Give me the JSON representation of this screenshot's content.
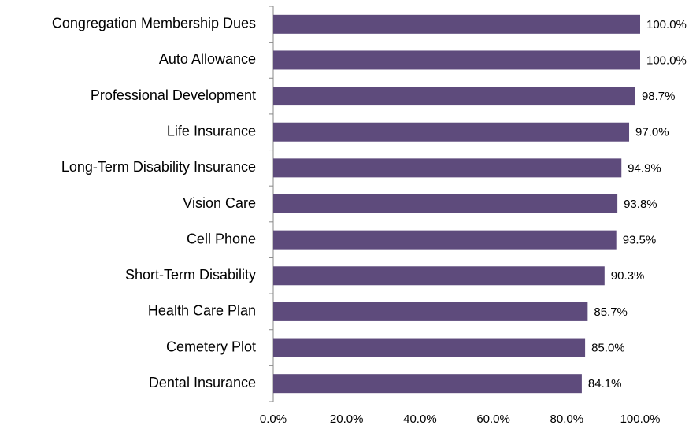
{
  "chart_data": {
    "type": "bar",
    "orientation": "horizontal",
    "categories": [
      "Congregation Membership Dues",
      "Auto Allowance",
      "Professional Development",
      "Life Insurance",
      "Long-Term Disability Insurance",
      "Vision Care",
      "Cell Phone",
      "Short-Term Disability",
      "Health Care Plan",
      "Cemetery Plot",
      "Dental Insurance"
    ],
    "values": [
      100.0,
      100.0,
      98.7,
      97.0,
      94.9,
      93.8,
      93.5,
      90.3,
      85.7,
      85.0,
      84.1
    ],
    "value_labels": [
      "100.0%",
      "100.0%",
      "98.7%",
      "97.0%",
      "94.9%",
      "93.8%",
      "93.5%",
      "90.3%",
      "85.7%",
      "85.0%",
      "84.1%"
    ],
    "color": "#5e4b7c",
    "xlim": [
      0,
      100
    ],
    "xticks": [
      {
        "value": 0,
        "label": "0.0%"
      },
      {
        "value": 20,
        "label": "20.0%"
      },
      {
        "value": 40,
        "label": "40.0%"
      },
      {
        "value": 60,
        "label": "60.0%"
      },
      {
        "value": 80,
        "label": "80.0%"
      },
      {
        "value": 100,
        "label": "100.0%"
      }
    ],
    "grid": false
  }
}
